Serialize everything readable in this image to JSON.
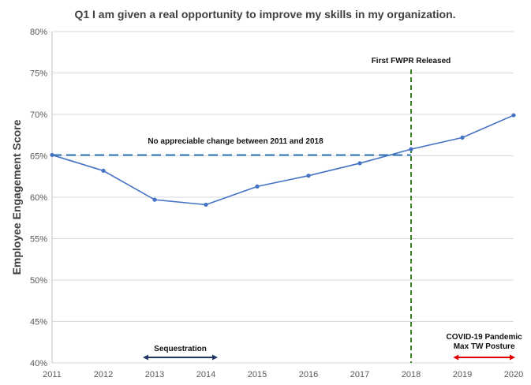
{
  "chart_data": {
    "type": "line",
    "title": "Q1 I am given a real opportunity  to improve  my skills in my organization.",
    "xlabel": "",
    "ylabel": "Employee  Engagement Score",
    "x": [
      2011,
      2012,
      2013,
      2014,
      2015,
      2016,
      2017,
      2018,
      2019,
      2020
    ],
    "x_tick_labels": [
      "2011",
      "2012",
      "2013",
      "2014",
      "2015",
      "2016",
      "2017",
      "2018",
      "2019",
      "2020"
    ],
    "series": [
      {
        "values": [
          65.1,
          63.2,
          59.7,
          59.1,
          61.3,
          62.6,
          64.1,
          65.8,
          67.2,
          69.9
        ]
      }
    ],
    "ylim": [
      40,
      80
    ],
    "y_ticks": [
      40,
      45,
      50,
      55,
      60,
      65,
      70,
      75,
      80
    ],
    "y_tick_labels": [
      "40%",
      "45%",
      "50%",
      "55%",
      "60%",
      "65%",
      "70%",
      "75%",
      "80%"
    ],
    "grid": "horizontal",
    "baseline": {
      "value": 65.1,
      "x_from": 2011,
      "x_to": 2018,
      "label": "No appreciable change between 2011 and 2018"
    },
    "vline": {
      "x": 2018,
      "label": "First FWPR Released"
    },
    "ranges": [
      {
        "label": "Sequestration",
        "x_from": 2012.8,
        "x_to": 2014.2,
        "color": "#1f3864"
      },
      {
        "label_lines": [
          "COVID-19 Pandemic",
          "Max TW Posture"
        ],
        "x_from": 2018.85,
        "x_to": 2020.0,
        "color": "#e00000"
      }
    ],
    "colors": {
      "line": "#4472c4",
      "baseline": "#2e75b6",
      "vline": "#3a7d22",
      "grid": "#d9d9d9"
    }
  }
}
